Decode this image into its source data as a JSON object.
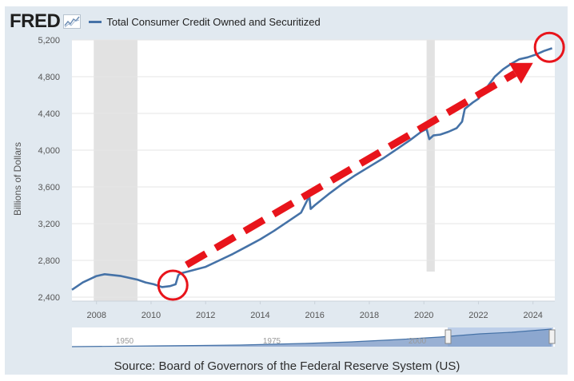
{
  "header": {
    "logo": "FRED",
    "legend_label": "Total Consumer Credit Owned and Securitized"
  },
  "source": "Source: Board of Governors of the Federal Reserve System (US)",
  "navigator_labels": [
    "1950",
    "1975",
    "2000"
  ],
  "colors": {
    "series": "#4572a7",
    "recession": "#e2e2e2",
    "annotation": "#e8141b",
    "background": "#e1e9f0"
  },
  "chart_data": {
    "type": "line",
    "xlabel": "",
    "ylabel": "Billions of Dollars",
    "xlim": [
      2007.1,
      2024.8
    ],
    "ylim": [
      2400,
      5200
    ],
    "x_ticks": [
      "2008",
      "2010",
      "2012",
      "2014",
      "2016",
      "2018",
      "2020",
      "2022",
      "2024"
    ],
    "y_ticks": [
      "2,400",
      "2,800",
      "3,200",
      "3,600",
      "4,000",
      "4,400",
      "4,800",
      "5,200"
    ],
    "recessions": [
      [
        2007.9,
        2009.5
      ],
      [
        2020.1,
        2020.4
      ]
    ],
    "grid": true,
    "legend": "top-left",
    "series": [
      {
        "name": "Total Consumer Credit Owned and Securitized",
        "x": [
          2007.1,
          2007.5,
          2008.0,
          2008.3,
          2008.6,
          2008.9,
          2009.2,
          2009.5,
          2009.8,
          2010.1,
          2010.4,
          2010.7,
          2010.9,
          2011.0,
          2011.1,
          2011.5,
          2012.0,
          2012.5,
          2013.0,
          2013.5,
          2014.0,
          2014.5,
          2015.0,
          2015.5,
          2015.8,
          2015.85,
          2016.0,
          2016.5,
          2017.0,
          2017.5,
          2018.0,
          2018.5,
          2019.0,
          2019.5,
          2019.9,
          2020.1,
          2020.2,
          2020.35,
          2020.6,
          2020.9,
          2021.2,
          2021.4,
          2021.5,
          2021.8,
          2022.0,
          2022.3,
          2022.6,
          2022.9,
          2023.2,
          2023.5,
          2023.8,
          2024.1,
          2024.4,
          2024.7
        ],
        "values": [
          2480,
          2560,
          2630,
          2650,
          2640,
          2630,
          2610,
          2590,
          2560,
          2540,
          2510,
          2520,
          2540,
          2640,
          2660,
          2690,
          2730,
          2800,
          2870,
          2950,
          3030,
          3120,
          3220,
          3320,
          3500,
          3360,
          3400,
          3520,
          3630,
          3730,
          3820,
          3910,
          4010,
          4110,
          4200,
          4230,
          4120,
          4160,
          4170,
          4200,
          4240,
          4310,
          4450,
          4520,
          4560,
          4680,
          4800,
          4880,
          4940,
          4990,
          5010,
          5040,
          5080,
          5110
        ]
      }
    ],
    "annotations": [
      {
        "type": "circle",
        "x": 2010.8,
        "y": 2530
      },
      {
        "type": "circle",
        "x": 2024.6,
        "y": 5120
      },
      {
        "type": "dashed-arrow",
        "from": [
          2011.3,
          2750
        ],
        "to": [
          2024.0,
          4950
        ]
      }
    ]
  }
}
